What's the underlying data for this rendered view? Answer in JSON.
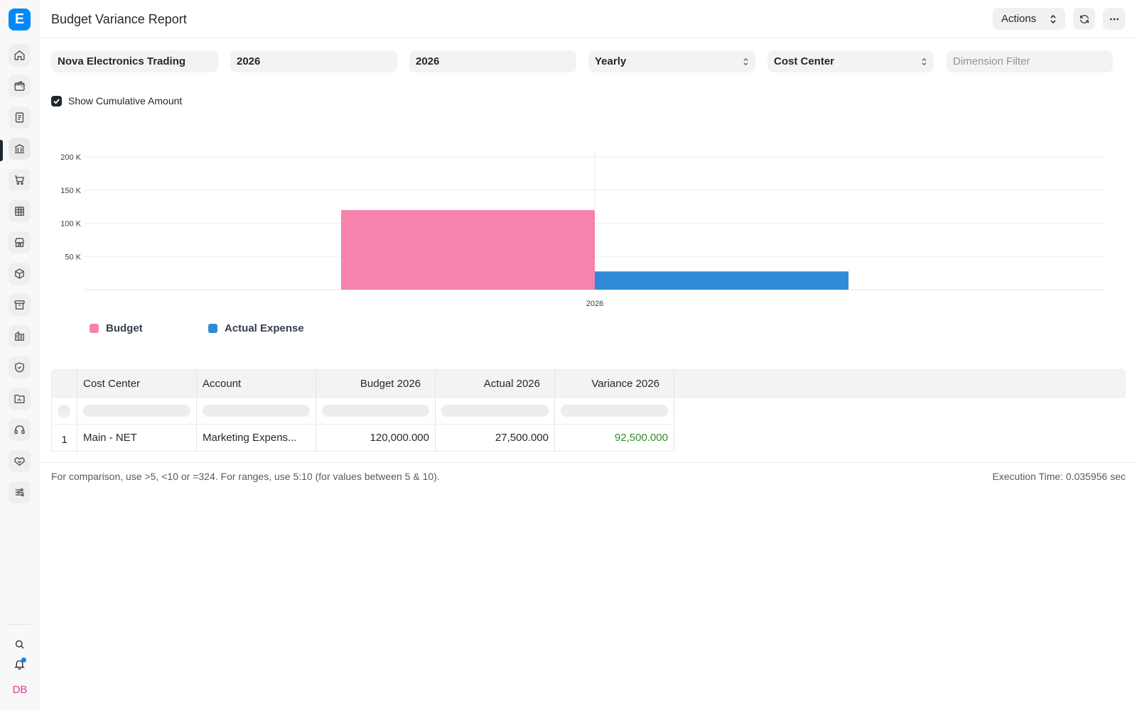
{
  "app": {
    "logo_letter": "E",
    "avatar_initials": "DB"
  },
  "header": {
    "title": "Budget Variance Report",
    "actions_label": "Actions"
  },
  "filters": {
    "company": "Nova Electronics Trading",
    "from_fiscal_year": "2026",
    "to_fiscal_year": "2026",
    "period": "Yearly",
    "budget_against": "Cost Center",
    "dimension_placeholder": "Dimension Filter"
  },
  "options": {
    "show_cumulative_label": "Show Cumulative Amount",
    "show_cumulative_checked": true
  },
  "chart_data": {
    "type": "bar",
    "categories": [
      "2026"
    ],
    "series": [
      {
        "name": "Budget",
        "values": [
          120000
        ],
        "color": "#f683ae"
      },
      {
        "name": "Actual Expense",
        "values": [
          27500
        ],
        "color": "#318ad8"
      }
    ],
    "yticks": [
      "50 K",
      "100 K",
      "150 K",
      "200 K"
    ],
    "ytick_values": [
      50000,
      100000,
      150000,
      200000
    ],
    "ylim": [
      0,
      200000
    ],
    "grid": true,
    "legend": "bottom-left"
  },
  "table": {
    "columns": [
      "Cost Center",
      "Account",
      "Budget 2026",
      "Actual 2026",
      "Variance 2026"
    ],
    "rows": [
      {
        "index": "1",
        "cost_center": "Main - NET",
        "account": "Marketing Expens...",
        "budget": "120,000.000",
        "actual": "27,500.000",
        "variance": "92,500.000"
      }
    ]
  },
  "footer": {
    "hint": "For comparison, use >5, <10 or =324. For ranges, use 5:10 (for values between 5 & 10).",
    "execution_time": "Execution Time: 0.035956 sec"
  }
}
